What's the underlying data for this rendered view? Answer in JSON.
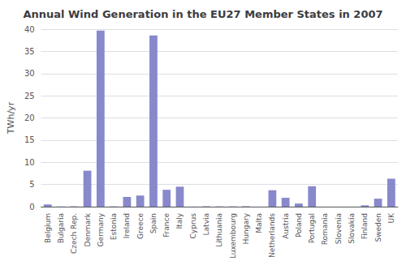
{
  "chart_data": {
    "type": "bar",
    "title": "Annual Wind Generation in the EU27 Member States in 2007",
    "ylabel": "TWh/yr",
    "categories": [
      "Belgium",
      "Bulgaria",
      "Czech Rep.",
      "Denmark",
      "Germany",
      "Estonia",
      "Ireland",
      "Greece",
      "Spain",
      "France",
      "Italy",
      "Cyprus",
      "Latvia",
      "Lithuania",
      "Luxembourg",
      "Hungary",
      "Malta",
      "Netherlands",
      "Austria",
      "Poland",
      "Portugal",
      "Romania",
      "Slovenia",
      "Slovakia",
      "Finland",
      "Sweden",
      "UK"
    ],
    "values": [
      0.5,
      0.05,
      0.08,
      8.1,
      39.7,
      0.07,
      2.2,
      2.5,
      38.6,
      3.8,
      4.5,
      0.02,
      0.07,
      0.07,
      0.07,
      0.1,
      0.0,
      3.7,
      2.0,
      0.7,
      4.6,
      0.0,
      0.0,
      0.0,
      0.3,
      1.8,
      6.3
    ],
    "color": "#8888cc",
    "ylim": [
      0,
      40
    ],
    "yticks": [
      0,
      5,
      10,
      15,
      20,
      25,
      30,
      35,
      40
    ],
    "grid": true
  }
}
